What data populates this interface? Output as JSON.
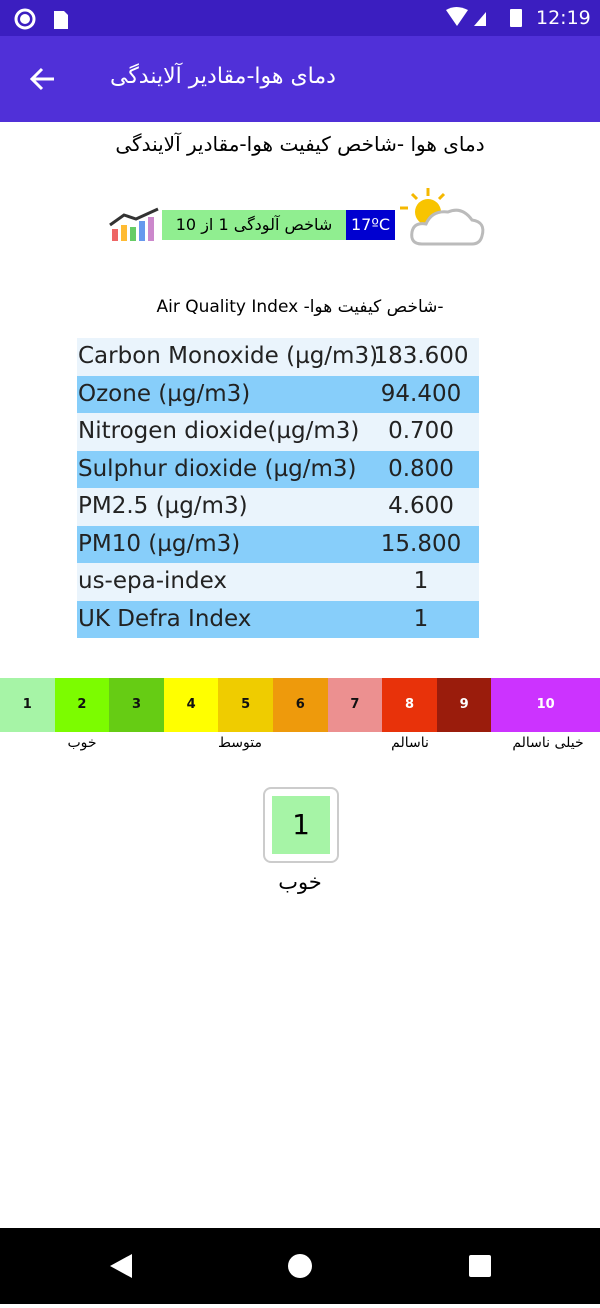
{
  "status_bar": {
    "time": "12:19"
  },
  "app_bar": {
    "title": "دمای هوا-مقادیر آلایندگی"
  },
  "heading": "دمای هوا -شاخص کیفیت هوا-مقادیر آلایندگی",
  "weather": {
    "temperature": "17ºC",
    "pollution": "شاخص آلودگی 1 از 10"
  },
  "aqi_title": "-شاخص کیفیت هوا- Air Quality Index",
  "table": {
    "rows": [
      [
        "Carbon Monoxide (µg/m3)",
        "183.600"
      ],
      [
        "Ozone (µg/m3)",
        "94.400"
      ],
      [
        "Nitrogen dioxide(µg/m3)",
        "0.700"
      ],
      [
        "Sulphur dioxide (µg/m3)",
        "0.800"
      ],
      [
        "PM2.5 (µg/m3)",
        "4.600"
      ],
      [
        "PM10 (µg/m3)",
        "15.800"
      ],
      [
        "us-epa-index",
        "1"
      ],
      [
        "UK Defra Index",
        "1"
      ]
    ]
  },
  "scale": {
    "levels": [
      {
        "label": 1,
        "color": "#a6f4a6"
      },
      {
        "label": 2,
        "color": "#7cfc00"
      },
      {
        "label": 3,
        "color": "#66cc14"
      },
      {
        "label": 4,
        "color": "#ffff00"
      },
      {
        "label": 5,
        "color": "#efcc00"
      },
      {
        "label": 6,
        "color": "#ee9a0c"
      },
      {
        "label": 7,
        "color": "#ec9090"
      },
      {
        "label": 8,
        "color": "#e8320a"
      },
      {
        "label": 9,
        "color": "#9a1c0c"
      },
      {
        "label": 10,
        "color": "#cc33ff"
      }
    ],
    "categories": [
      "خوب",
      "متوسط",
      "ناسالم",
      "خیلی ناسالم"
    ]
  },
  "current": {
    "value": 1,
    "label": "خوب"
  }
}
